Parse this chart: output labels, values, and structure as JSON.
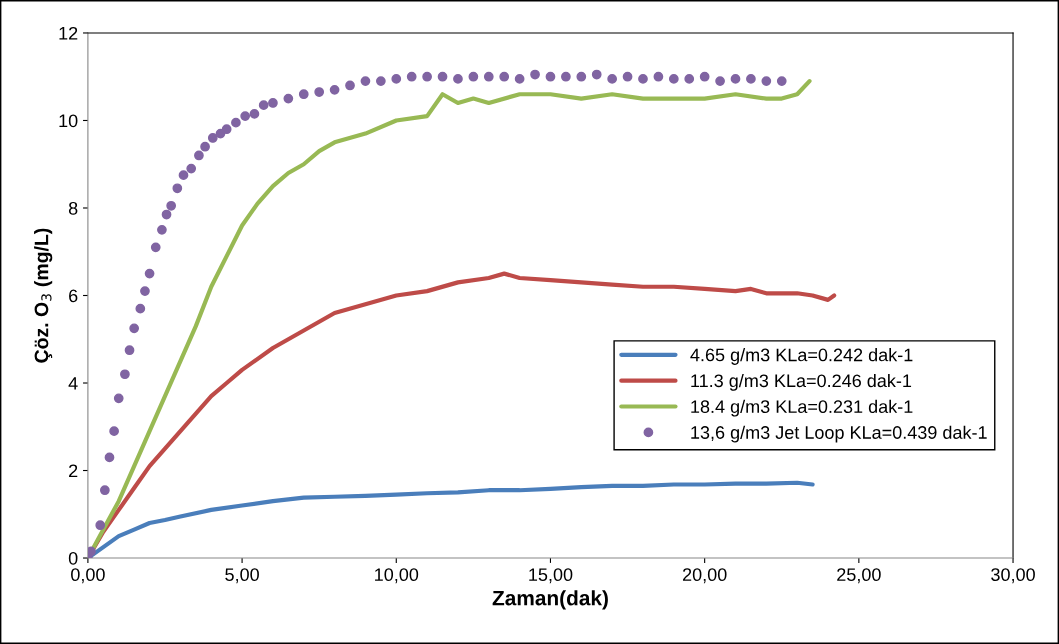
{
  "chart_data": {
    "type": "line",
    "xlabel": "Zaman(dak)",
    "ylabel": "Çöz. O$_{3}$ (mg/L)",
    "xlim": [
      0,
      30
    ],
    "xticks": [
      {
        "value": 0,
        "label": "0,00"
      },
      {
        "value": 5,
        "label": "5,00"
      },
      {
        "value": 10,
        "label": "10,00"
      },
      {
        "value": 15,
        "label": "15,00"
      },
      {
        "value": 20,
        "label": "20,00"
      },
      {
        "value": 25,
        "label": "25,00"
      },
      {
        "value": 30,
        "label": "30,00"
      }
    ],
    "ylim": [
      0,
      12
    ],
    "yticks": [
      0,
      2,
      4,
      6,
      8,
      10,
      12
    ],
    "grid": false,
    "legend": "right",
    "series": [
      {
        "name": "4.65 g/m3 KLa=0.242 dak-1",
        "color": "#4a7ebb",
        "x": [
          0,
          0.5,
          1,
          1.5,
          2,
          2.5,
          3,
          4,
          5,
          6,
          7,
          8,
          9,
          10,
          11,
          12,
          13,
          14,
          15,
          16,
          17,
          18,
          19,
          20,
          21,
          22,
          23,
          23.5
        ],
        "values": [
          0,
          0.25,
          0.5,
          0.65,
          0.8,
          0.87,
          0.95,
          1.1,
          1.2,
          1.3,
          1.38,
          1.4,
          1.42,
          1.45,
          1.48,
          1.5,
          1.55,
          1.55,
          1.58,
          1.62,
          1.65,
          1.65,
          1.68,
          1.68,
          1.7,
          1.7,
          1.72,
          1.68
        ]
      },
      {
        "name": "11.3 g/m3 KLa=0.246 dak-1",
        "color": "#be4b48",
        "x": [
          0,
          0.5,
          1,
          1.5,
          2,
          2.5,
          3,
          3.5,
          4,
          4.5,
          5,
          6,
          7,
          8,
          9,
          10,
          11,
          12,
          13,
          13.5,
          14,
          15,
          16,
          17,
          18,
          19,
          20,
          21,
          21.5,
          22,
          23,
          23.5,
          24,
          24.2
        ],
        "values": [
          0,
          0.6,
          1.1,
          1.6,
          2.1,
          2.5,
          2.9,
          3.3,
          3.7,
          4.0,
          4.3,
          4.8,
          5.2,
          5.6,
          5.8,
          6.0,
          6.1,
          6.3,
          6.4,
          6.5,
          6.4,
          6.35,
          6.3,
          6.25,
          6.2,
          6.2,
          6.15,
          6.1,
          6.15,
          6.05,
          6.05,
          6.0,
          5.9,
          6.0
        ]
      },
      {
        "name": "18.4 g/m3 KLa=0.231 dak-1",
        "color": "#98b954",
        "x": [
          0,
          0.5,
          1,
          1.5,
          2,
          2.5,
          3,
          3.5,
          4,
          4.5,
          5,
          5.5,
          6,
          6.5,
          7,
          7.5,
          8,
          9,
          10,
          11,
          11.5,
          12,
          12.5,
          13,
          14,
          15,
          16,
          17,
          18,
          19,
          20,
          21,
          22,
          22.5,
          23,
          23.4
        ],
        "values": [
          0,
          0.65,
          1.3,
          2.1,
          2.9,
          3.7,
          4.5,
          5.3,
          6.2,
          6.9,
          7.6,
          8.1,
          8.5,
          8.8,
          9.0,
          9.3,
          9.5,
          9.7,
          10.0,
          10.1,
          10.6,
          10.4,
          10.5,
          10.4,
          10.6,
          10.6,
          10.5,
          10.6,
          10.5,
          10.5,
          10.5,
          10.6,
          10.5,
          10.5,
          10.6,
          10.9
        ]
      },
      {
        "name": "13,6 g/m3 Jet Loop KLa=0.439 dak-1",
        "color": "#8064a2",
        "type": "scatter",
        "marker": "circle",
        "x": [
          0,
          0.1,
          0.4,
          0.55,
          0.7,
          0.85,
          1.0,
          1.2,
          1.35,
          1.5,
          1.7,
          1.85,
          2.0,
          2.2,
          2.4,
          2.55,
          2.7,
          2.9,
          3.1,
          3.35,
          3.6,
          3.8,
          4.05,
          4.3,
          4.5,
          4.8,
          5.1,
          5.4,
          5.7,
          6.0,
          6.5,
          7.0,
          7.5,
          8.0,
          8.5,
          9.0,
          9.5,
          10,
          10.5,
          11,
          11.5,
          12,
          12.5,
          13,
          13.5,
          14,
          14.5,
          15,
          15.5,
          16,
          16.5,
          17,
          17.5,
          18,
          18.5,
          19,
          19.5,
          20,
          20.5,
          21,
          21.5,
          22,
          22.5
        ],
        "values": [
          0,
          0.15,
          0.75,
          1.55,
          2.3,
          2.9,
          3.65,
          4.2,
          4.75,
          5.25,
          5.7,
          6.1,
          6.5,
          7.1,
          7.5,
          7.85,
          8.05,
          8.45,
          8.75,
          8.9,
          9.2,
          9.4,
          9.6,
          9.7,
          9.8,
          9.95,
          10.1,
          10.15,
          10.35,
          10.4,
          10.5,
          10.6,
          10.65,
          10.7,
          10.8,
          10.9,
          10.9,
          10.95,
          11.0,
          11.0,
          11.0,
          10.95,
          11.0,
          11.0,
          11.0,
          10.95,
          11.05,
          11.0,
          11.0,
          11.0,
          11.05,
          10.95,
          11.0,
          10.95,
          11.0,
          10.95,
          10.95,
          11.0,
          10.9,
          10.95,
          10.95,
          10.9,
          10.9
        ]
      }
    ]
  }
}
